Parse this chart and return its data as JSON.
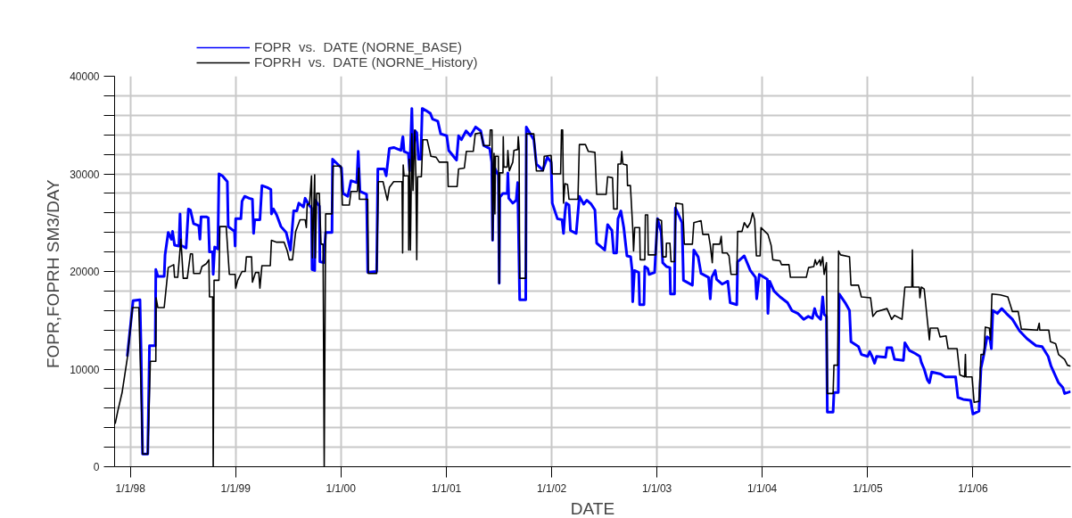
{
  "chart_data": {
    "type": "line",
    "xlabel": "DATE",
    "ylabel": "FOPR,FOPRH  SM3/DAY",
    "xlim": [
      "1997-11-07",
      "2006-12-06"
    ],
    "ylim": [
      0,
      40000
    ],
    "xticks": [
      {
        "value": "1998-01-01",
        "label": "1/1/98"
      },
      {
        "value": "1999-01-01",
        "label": "1/1/99"
      },
      {
        "value": "2000-01-01",
        "label": "1/1/00"
      },
      {
        "value": "2001-01-01",
        "label": "1/1/01"
      },
      {
        "value": "2002-01-01",
        "label": "1/1/02"
      },
      {
        "value": "2003-01-01",
        "label": "1/1/03"
      },
      {
        "value": "2004-01-01",
        "label": "1/1/04"
      },
      {
        "value": "2005-01-01",
        "label": "1/1/05"
      },
      {
        "value": "2006-01-01",
        "label": "1/1/06"
      }
    ],
    "yticks": [
      0,
      {
        "value": 2000,
        "label": null
      },
      {
        "value": 4000,
        "label": null
      },
      {
        "value": 6000,
        "label": null
      },
      {
        "value": 8000,
        "label": null
      },
      10000,
      {
        "value": 12000,
        "label": null
      },
      {
        "value": 14000,
        "label": null
      },
      {
        "value": 16000,
        "label": null
      },
      {
        "value": 18000,
        "label": null
      },
      20000,
      {
        "value": 22000,
        "label": null
      },
      {
        "value": 24000,
        "label": null
      },
      {
        "value": 26000,
        "label": null
      },
      {
        "value": 28000,
        "label": null
      },
      30000,
      {
        "value": 32000,
        "label": null
      },
      {
        "value": 34000,
        "label": null
      },
      {
        "value": 36000,
        "label": null
      },
      {
        "value": 38000,
        "label": null
      },
      40000
    ],
    "grid": true,
    "legend": "top left",
    "marker": "none",
    "line_style": "solid",
    "series": [
      {
        "name": "FOPR  vs.  DATE (NORNE_BASE)",
        "color": "#0000ff",
        "x": [
          "1997-12-21",
          "1998-01-10",
          "1998-02-03",
          "1998-02-07",
          "1998-02-12",
          "1998-03-02",
          "1998-03-08",
          "1998-03-28",
          "1998-03-30",
          "1998-04-06",
          "1998-04-28",
          "1998-05-01",
          "1998-05-12",
          "1998-05-23",
          "1998-05-27",
          "1998-06-03",
          "1998-06-18",
          "1998-06-22",
          "1998-06-25",
          "1998-07-13",
          "1998-07-21",
          "1998-07-28",
          "1998-08-08",
          "1998-08-26",
          "1998-08-30",
          "1998-09-03",
          "1998-09-21",
          "1998-09-28",
          "1998-10-02",
          "1998-10-13",
          "1998-10-15",
          "1998-10-20",
          "1998-10-31",
          "1998-11-04",
          "1998-11-16",
          "1998-12-03",
          "1998-12-06",
          "1998-12-28",
          "1998-12-30",
          "1999-01-01",
          "1999-01-19",
          "1999-01-23",
          "1999-02-01",
          "1999-02-17",
          "1999-02-28",
          "1999-03-04",
          "1999-03-08",
          "1999-03-26",
          "1999-04-02",
          "1999-04-21",
          "1999-05-03",
          "1999-05-05",
          "1999-05-12",
          "1999-05-23",
          "1999-06-07",
          "1999-06-25",
          "1999-07-10",
          "1999-07-21",
          "1999-08-01",
          "1999-08-08",
          "1999-08-24",
          "1999-08-30",
          "1999-09-10",
          "1999-09-21",
          "1999-09-23",
          "1999-10-02",
          "1999-10-04",
          "1999-10-18",
          "1999-10-20",
          "1999-11-02",
          "1999-11-09",
          "1999-12-01",
          "1999-12-03",
          "1999-12-17",
          "2000-01-03",
          "2000-01-08",
          "2000-01-25",
          "2000-02-05",
          "2000-02-25",
          "2000-03-01",
          "2000-03-07",
          "2000-03-30",
          "2000-04-03",
          "2000-05-04",
          "2000-05-08",
          "2000-05-30",
          "2000-06-06",
          "2000-06-17",
          "2000-07-02",
          "2000-07-27",
          "2000-08-02",
          "2000-08-03",
          "2000-08-07",
          "2000-08-22",
          "2000-08-26",
          "2000-08-28",
          "2000-09-03",
          "2000-09-07",
          "2000-09-15",
          "2000-09-20",
          "2000-09-26",
          "2000-10-04",
          "2000-10-09",
          "2000-10-21",
          "2000-11-06",
          "2000-11-14",
          "2000-12-02",
          "2000-12-12",
          "2001-01-02",
          "2001-01-09",
          "2001-02-05",
          "2001-02-12",
          "2001-02-22",
          "2001-03-10",
          "2001-03-25",
          "2001-04-12",
          "2001-04-30",
          "2001-05-10",
          "2001-05-31",
          "2001-06-07",
          "2001-06-10",
          "2001-06-13",
          "2001-06-25",
          "2001-06-30",
          "2001-07-03",
          "2001-07-05",
          "2001-07-16",
          "2001-07-31",
          "2001-08-02",
          "2001-08-05",
          "2001-08-19",
          "2001-08-31",
          "2001-09-05",
          "2001-09-12",
          "2001-10-03",
          "2001-10-05",
          "2001-10-31",
          "2001-11-09",
          "2001-12-01",
          "2001-12-17",
          "2001-12-30",
          "2002-01-03",
          "2002-01-21",
          "2002-02-06",
          "2002-02-11",
          "2002-02-16",
          "2002-02-20",
          "2002-03-02",
          "2002-03-07",
          "2002-03-27",
          "2002-04-07",
          "2002-04-22",
          "2002-05-03",
          "2002-05-18",
          "2002-05-31",
          "2002-06-06",
          "2002-07-04",
          "2002-07-14",
          "2002-07-29",
          "2002-08-04",
          "2002-08-14",
          "2002-08-19",
          "2002-08-29",
          "2002-09-08",
          "2002-09-19",
          "2002-10-02",
          "2002-10-07",
          "2002-10-09",
          "2002-10-15",
          "2002-10-30",
          "2002-11-02",
          "2002-11-17",
          "2002-11-20",
          "2002-11-30",
          "2002-12-05",
          "2002-12-24",
          "2003-01-03",
          "2003-01-16",
          "2003-01-21",
          "2003-02-03",
          "2003-02-15",
          "2003-02-17",
          "2003-03-03",
          "2003-03-06",
          "2003-03-29",
          "2003-04-03",
          "2003-05-04",
          "2003-05-09",
          "2003-05-24",
          "2003-06-03",
          "2003-06-29",
          "2003-07-05",
          "2003-07-10",
          "2003-07-22",
          "2003-07-27",
          "2003-08-15",
          "2003-09-04",
          "2003-09-12",
          "2003-10-05",
          "2003-10-08",
          "2003-10-31",
          "2003-11-21",
          "2003-12-09",
          "2003-12-13",
          "2003-12-22",
          "2004-01-19",
          "2004-01-21",
          "2004-01-27",
          "2004-02-11",
          "2004-03-03",
          "2004-03-29",
          "2004-04-13",
          "2004-05-04",
          "2004-05-24",
          "2004-06-09",
          "2004-06-23",
          "2004-07-01",
          "2004-07-08",
          "2004-07-22",
          "2004-07-29",
          "2004-08-03",
          "2004-08-11",
          "2004-08-14",
          "2004-09-03",
          "2004-09-06",
          "2004-09-21",
          "2004-09-24",
          "2004-10-15",
          "2004-10-30",
          "2004-11-04",
          "2004-11-30",
          "2004-12-10",
          "2005-01-01",
          "2005-01-08",
          "2005-01-16",
          "2005-01-25",
          "2005-02-01",
          "2005-03-04",
          "2005-03-09",
          "2005-03-25",
          "2005-04-04",
          "2005-05-05",
          "2005-05-10",
          "2005-05-26",
          "2005-06-15",
          "2005-07-01",
          "2005-07-06",
          "2005-07-16",
          "2005-07-27",
          "2005-08-03",
          "2005-08-11",
          "2005-09-11",
          "2005-09-27",
          "2005-11-02",
          "2005-11-10",
          "2005-11-28",
          "2005-12-24",
          "2006-01-01",
          "2006-01-22",
          "2006-01-29",
          "2006-02-08",
          "2006-02-19",
          "2006-03-01",
          "2006-03-06",
          "2006-03-11",
          "2006-03-27",
          "2006-04-11",
          "2006-04-27",
          "2006-05-18",
          "2006-06-12",
          "2006-07-08",
          "2006-08-08",
          "2006-08-29",
          "2006-09-19",
          "2006-09-29",
          "2006-10-25",
          "2006-11-09",
          "2006-11-15",
          "2006-12-06"
        ],
        "values": [
          11300,
          17000,
          17100,
          11600,
          1300,
          1300,
          12400,
          12400,
          20200,
          19500,
          19500,
          21700,
          24000,
          23300,
          24100,
          22700,
          22600,
          25900,
          22700,
          22400,
          26400,
          26300,
          24900,
          24700,
          23300,
          25600,
          25600,
          25500,
          22000,
          22000,
          19700,
          22500,
          22300,
          30000,
          29800,
          29200,
          24600,
          24100,
          22600,
          25400,
          25400,
          27200,
          27700,
          27500,
          27400,
          23900,
          25300,
          25300,
          28800,
          28600,
          28400,
          25900,
          26400,
          25800,
          24600,
          24000,
          22200,
          26200,
          26200,
          27000,
          26600,
          27500,
          26900,
          26500,
          20200,
          20100,
          27300,
          26700,
          21000,
          20900,
          24000,
          24000,
          31500,
          31100,
          30600,
          28000,
          27700,
          29300,
          29100,
          32300,
          28200,
          27900,
          19900,
          20000,
          30500,
          30500,
          29800,
          32600,
          32700,
          32400,
          33700,
          33800,
          32300,
          32100,
          30300,
          31500,
          36700,
          31500,
          34400,
          34200,
          31500,
          31500,
          36700,
          36500,
          36200,
          35600,
          35400,
          34100,
          33900,
          32400,
          31400,
          33900,
          33500,
          34400,
          33900,
          34800,
          34400,
          32900,
          32600,
          31200,
          23200,
          30900,
          30100,
          29900,
          18800,
          27600,
          28000,
          28000,
          30100,
          27500,
          27000,
          27300,
          29100,
          17100,
          17100,
          34800,
          33500,
          31000,
          30400,
          31700,
          31200,
          27000,
          25400,
          25300,
          23900,
          26000,
          27000,
          26800,
          24200,
          23900,
          27700,
          26900,
          27300,
          26900,
          26300,
          22900,
          22200,
          24800,
          24200,
          21900,
          21900,
          25400,
          26200,
          24500,
          21600,
          21500,
          20100,
          16900,
          20100,
          19900,
          16600,
          16600,
          20500,
          20300,
          19700,
          19900,
          25400,
          24000,
          20900,
          20500,
          20400,
          17700,
          17700,
          26500,
          25000,
          19100,
          18600,
          22200,
          21500,
          19800,
          19400,
          17200,
          19400,
          20100,
          19200,
          18700,
          19000,
          16800,
          16600,
          21000,
          21600,
          20100,
          19400,
          17200,
          19700,
          19200,
          15700,
          19000,
          18000,
          17400,
          16800,
          16000,
          15700,
          15100,
          15400,
          15200,
          16200,
          15500,
          15100,
          17400,
          15600,
          15400,
          5600,
          5600,
          7600,
          7600,
          17700,
          16800,
          16000,
          12800,
          12300,
          11500,
          11300,
          11800,
          11300,
          10600,
          11300,
          11200,
          12200,
          12200,
          11000,
          10900,
          12700,
          11900,
          11600,
          11300,
          10700,
          10000,
          8900,
          8600,
          9700,
          9500,
          9200,
          9200,
          7100,
          6900,
          6800,
          5400,
          5700,
          10100,
          11500,
          13300,
          13100,
          12100,
          16000,
          15700,
          16200,
          15700,
          15100,
          13900,
          13100,
          12400,
          12300,
          11300,
          10300,
          8600,
          8100,
          7500,
          7700
        ]
      },
      {
        "name": "FOPRH  vs.  DATE (NORNE_History)",
        "color": "#000000",
        "x": [
          "1997-11-09",
          "1997-11-18",
          "1997-12-03",
          "1997-12-21",
          "1998-01-08",
          "1998-01-30",
          "1998-02-08",
          "1998-02-12",
          "1998-03-02",
          "1998-03-11",
          "1998-03-30",
          "1998-03-31",
          "1998-04-06",
          "1998-04-28",
          "1998-05-12",
          "1998-05-31",
          "1998-06-03",
          "1998-06-14",
          "1998-06-25",
          "1998-07-03",
          "1998-07-17",
          "1998-07-28",
          "1998-08-04",
          "1998-08-08",
          "1998-08-30",
          "1998-09-06",
          "1998-09-21",
          "1998-09-30",
          "1998-10-02",
          "1998-10-13",
          "1998-10-15",
          "1998-10-18",
          "1998-11-04",
          "1998-11-07",
          "1998-11-29",
          "1998-12-10",
          "1998-12-30",
          "1999-01-01",
          "1999-01-08",
          "1999-01-23",
          "1999-02-03",
          "1999-02-07",
          "1999-02-25",
          "1999-02-28",
          "1999-03-11",
          "1999-03-22",
          "1999-03-26",
          "1999-04-02",
          "1999-05-01",
          "1999-05-05",
          "1999-05-23",
          "1999-06-18",
          "1999-06-29",
          "1999-07-06",
          "1999-07-17",
          "1999-07-28",
          "1999-08-12",
          "1999-08-30",
          "1999-09-03",
          "1999-09-06",
          "1999-09-14",
          "1999-09-21",
          "1999-09-24",
          "1999-10-02",
          "1999-10-04",
          "1999-10-09",
          "1999-10-18",
          "1999-10-24",
          "1999-10-31",
          "1999-11-04",
          "1999-11-09",
          "1999-12-01",
          "1999-12-05",
          "2000-01-01",
          "2000-01-06",
          "2000-01-30",
          "2000-02-05",
          "2000-02-27",
          "2000-03-03",
          "2000-03-05",
          "2000-04-03",
          "2000-04-05",
          "2000-05-04",
          "2000-05-10",
          "2000-05-26",
          "2000-06-10",
          "2000-06-17",
          "2000-07-02",
          "2000-07-31",
          "2000-08-02",
          "2000-08-04",
          "2000-08-07",
          "2000-08-22",
          "2000-08-23",
          "2000-08-25",
          "2000-08-29",
          "2000-09-03",
          "2000-09-07",
          "2000-09-13",
          "2000-09-17",
          "2000-09-20",
          "2000-09-23",
          "2000-10-06",
          "2000-10-11",
          "2000-10-26",
          "2000-11-08",
          "2000-11-26",
          "2000-12-07",
          "2001-01-05",
          "2001-01-07",
          "2001-02-07",
          "2001-02-12",
          "2001-03-04",
          "2001-03-11",
          "2001-04-04",
          "2001-04-11",
          "2001-04-30",
          "2001-05-10",
          "2001-05-31",
          "2001-06-02",
          "2001-06-08",
          "2001-06-10",
          "2001-06-15",
          "2001-06-18",
          "2001-06-20",
          "2001-06-30",
          "2001-07-03",
          "2001-07-05",
          "2001-07-16",
          "2001-07-17",
          "2001-07-19",
          "2001-07-31",
          "2001-08-02",
          "2001-08-07",
          "2001-08-19",
          "2001-08-23",
          "2001-09-05",
          "2001-09-07",
          "2001-09-10",
          "2001-09-12",
          "2001-10-03",
          "2001-10-05",
          "2001-10-31",
          "2001-11-05",
          "2001-11-09",
          "2001-12-03",
          "2001-12-06",
          "2001-12-30",
          "2002-01-03",
          "2002-02-01",
          "2002-02-04",
          "2002-02-08",
          "2002-02-11",
          "2002-02-16",
          "2002-02-25",
          "2002-03-02",
          "2002-04-02",
          "2002-04-07",
          "2002-04-28",
          "2002-05-08",
          "2002-05-31",
          "2002-06-06",
          "2002-07-09",
          "2002-07-14",
          "2002-07-31",
          "2002-08-04",
          "2002-08-16",
          "2002-08-19",
          "2002-08-29",
          "2002-09-01",
          "2002-09-05",
          "2002-09-19",
          "2002-09-21",
          "2002-10-01",
          "2002-10-09",
          "2002-10-12",
          "2002-10-16",
          "2002-11-02",
          "2002-11-04",
          "2002-11-20",
          "2002-11-22",
          "2002-11-30",
          "2002-12-02",
          "2002-12-28",
          "2003-01-02",
          "2003-01-17",
          "2003-01-21",
          "2003-02-02",
          "2003-02-03",
          "2003-02-15",
          "2003-02-19",
          "2003-03-03",
          "2003-03-08",
          "2003-03-31",
          "2003-04-06",
          "2003-05-04",
          "2003-05-09",
          "2003-06-03",
          "2003-06-09",
          "2003-06-29",
          "2003-07-05",
          "2003-07-12",
          "2003-07-15",
          "2003-08-07",
          "2003-08-12",
          "2003-08-16",
          "2003-09-01",
          "2003-09-08",
          "2003-09-15",
          "2003-10-05",
          "2003-10-08",
          "2003-10-23",
          "2003-10-31",
          "2003-11-11",
          "2003-11-21",
          "2003-11-29",
          "2003-12-06",
          "2003-12-12",
          "2003-12-25",
          "2003-12-28",
          "2004-01-21",
          "2004-02-01",
          "2004-02-07",
          "2004-03-03",
          "2004-03-08",
          "2004-04-03",
          "2004-04-08",
          "2004-06-02",
          "2004-06-10",
          "2004-06-28",
          "2004-07-03",
          "2004-07-08",
          "2004-07-19",
          "2004-07-22",
          "2004-07-29",
          "2004-08-03",
          "2004-08-11",
          "2004-08-14",
          "2004-09-03",
          "2004-09-06",
          "2004-09-19",
          "2004-09-22",
          "2004-09-29",
          "2004-10-30",
          "2004-11-04",
          "2004-11-30",
          "2004-12-10",
          "2005-01-11",
          "2005-01-19",
          "2005-02-01",
          "2005-03-09",
          "2005-03-25",
          "2005-04-04",
          "2005-04-30",
          "2005-05-10",
          "2005-06-03",
          "2005-06-05",
          "2005-06-07",
          "2005-06-29",
          "2005-07-01",
          "2005-07-06",
          "2005-07-16",
          "2005-07-27",
          "2005-08-03",
          "2005-08-06",
          "2005-09-01",
          "2005-09-09",
          "2005-09-30",
          "2005-10-07",
          "2005-11-07",
          "2005-11-17",
          "2005-12-03",
          "2005-12-06",
          "2005-12-08",
          "2005-12-29",
          "2006-01-05",
          "2006-01-22",
          "2006-01-29",
          "2006-02-08",
          "2006-02-13",
          "2006-02-27",
          "2006-03-03",
          "2006-03-08",
          "2006-04-06",
          "2006-05-02",
          "2006-05-18",
          "2006-06-07",
          "2006-06-18",
          "2006-08-13",
          "2006-08-19",
          "2006-08-21",
          "2006-09-21",
          "2006-09-27",
          "2006-10-15",
          "2006-10-25",
          "2006-11-15",
          "2006-11-25",
          "2006-12-06"
        ],
        "values": [
          4400,
          5700,
          7600,
          11100,
          16300,
          16300,
          6400,
          1300,
          1300,
          10800,
          10800,
          17300,
          16300,
          16300,
          20400,
          20700,
          19400,
          19400,
          23300,
          19300,
          19300,
          21800,
          21800,
          19800,
          19800,
          20500,
          20800,
          21200,
          17400,
          17400,
          0,
          19100,
          19100,
          24600,
          24600,
          19700,
          19700,
          18300,
          19100,
          20000,
          20000,
          21500,
          21500,
          18900,
          19900,
          19900,
          18300,
          20600,
          20600,
          23200,
          23000,
          23000,
          22100,
          21200,
          21200,
          24100,
          25300,
          25300,
          24500,
          26900,
          26900,
          29800,
          21400,
          29900,
          21400,
          28000,
          28000,
          22800,
          22800,
          0,
          25900,
          25900,
          30800,
          30800,
          26800,
          26800,
          28200,
          28200,
          30600,
          27400,
          27400,
          19800,
          19800,
          29200,
          29200,
          27300,
          28600,
          29200,
          29200,
          21900,
          30900,
          29800,
          29800,
          22200,
          31500,
          22200,
          34100,
          28300,
          34500,
          29700,
          21200,
          29700,
          29700,
          33500,
          33500,
          31800,
          31700,
          31200,
          31200,
          28700,
          28700,
          30500,
          30600,
          32300,
          32300,
          34100,
          34200,
          32900,
          32900,
          34500,
          34500,
          23200,
          32100,
          25900,
          31800,
          31800,
          18800,
          30100,
          30100,
          33800,
          30700,
          30700,
          32400,
          30300,
          31200,
          32400,
          32500,
          33800,
          32600,
          19300,
          19300,
          34100,
          34100,
          32100,
          30300,
          30300,
          31800,
          31900,
          30000,
          30000,
          34500,
          34500,
          27000,
          29000,
          28900,
          27400,
          27400,
          33000,
          33000,
          32300,
          32200,
          27900,
          27900,
          29700,
          29600,
          26400,
          26400,
          31000,
          31000,
          32300,
          31000,
          30900,
          28800,
          28800,
          24500,
          22100,
          24500,
          24500,
          21200,
          21200,
          25800,
          25800,
          21700,
          21700,
          25400,
          25200,
          21500,
          21500,
          22900,
          22900,
          21000,
          21000,
          27000,
          26900,
          22800,
          22800,
          25000,
          25200,
          23800,
          23800,
          22700,
          20900,
          22800,
          22800,
          23600,
          21900,
          21900,
          21600,
          19700,
          19700,
          24100,
          24100,
          25000,
          24500,
          25000,
          26000,
          25300,
          21600,
          21600,
          24500,
          23800,
          22700,
          21200,
          21100,
          20700,
          20700,
          19400,
          19400,
          20400,
          20500,
          21200,
          20700,
          21200,
          20600,
          21500,
          19700,
          20900,
          7500,
          7500,
          10400,
          10400,
          22100,
          21700,
          21500,
          18600,
          18600,
          17400,
          17300,
          15400,
          15900,
          16200,
          15100,
          15500,
          15100,
          18400,
          18400,
          22200,
          18400,
          18400,
          17300,
          18400,
          18200,
          15000,
          13000,
          14200,
          14200,
          13300,
          13400,
          12100,
          12100,
          9400,
          9200,
          11500,
          9200,
          9200,
          6600,
          6700,
          11500,
          11500,
          14300,
          14200,
          13000,
          17700,
          17600,
          17400,
          15900,
          15900,
          14100,
          14000,
          14700,
          14000,
          14000,
          12800,
          12600,
          11500,
          11000,
          10400,
          10300
        ]
      }
    ]
  }
}
